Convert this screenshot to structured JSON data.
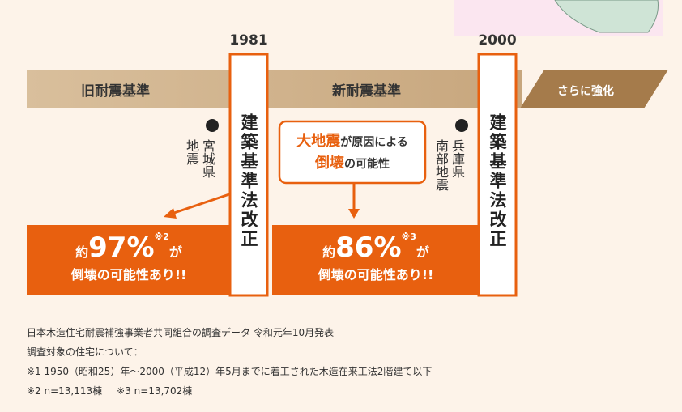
{
  "years": [
    "1981",
    "2000"
  ],
  "eras": [
    "旧耐震基準",
    "新耐震基準",
    "さらに強化"
  ],
  "revision_label": "建築基準法改正",
  "earthquakes": [
    {
      "lines": [
        "宮城県",
        "地震"
      ]
    },
    {
      "lines": [
        "兵庫県",
        "南部地震"
      ]
    }
  ],
  "callout": {
    "line1_em": "大地震",
    "line1_rest": "が原因による",
    "line2_em": "倒壊",
    "line2_rest": "の可能性"
  },
  "stats": [
    {
      "prefix": "約",
      "value": "97%",
      "note": "※2",
      "suffix": "が",
      "line2": "倒壊の可能性あり!!"
    },
    {
      "prefix": "約",
      "value": "86%",
      "note": "※3",
      "suffix": "が",
      "line2": "倒壊の可能性あり!!"
    }
  ],
  "footnotes": [
    "日本木造住宅耐震補強事業者共同組合の調査データ 令和元年10月発表",
    "調査対象の住宅について：",
    "※1 1950（昭和25）年〜2000（平成12）年5月までに着工された木造在来工法2階建て以下"
  ],
  "sample_sizes": [
    "※2 n=13,113棟",
    "※3 n=13,702棟"
  ]
}
